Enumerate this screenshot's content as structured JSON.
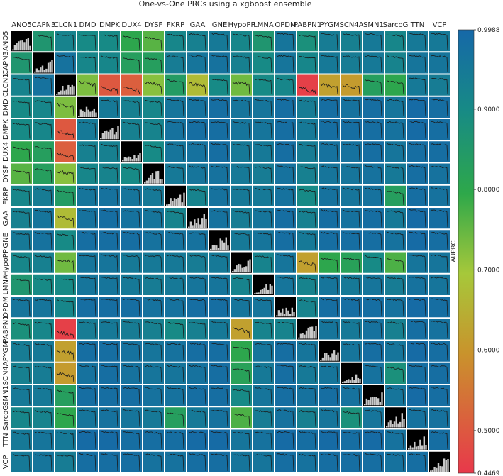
{
  "chart_data": {
    "type": "heatmap",
    "title": "One-vs-One PRCs using a xgboost ensemble",
    "colorbar_label": "AUPRC",
    "colorbar_ticks": [
      "0.9988",
      "0.9000",
      "0.8000",
      "0.7000",
      "0.6000",
      "0.5000",
      "0.4469"
    ],
    "colorbar_tick_values": [
      0.9988,
      0.9,
      0.8,
      0.7,
      0.6,
      0.5,
      0.4469
    ],
    "vmin": 0.4469,
    "vmax": 0.9988,
    "classes": [
      "ANO5",
      "CAPN3",
      "CLCN1",
      "DMD",
      "DMPK",
      "DUX4",
      "DYSF",
      "FKRP",
      "GAA",
      "GNE",
      "HypoPP",
      "LMNA",
      "OPDM",
      "PABPN1",
      "PYGM",
      "SCN4A",
      "SMN1",
      "SarcoG",
      "TTN",
      "VCP"
    ],
    "colors": {
      "low": "#e8384b",
      "mid_low": "#c9932c",
      "mid": "#a6c83a",
      "mid_high": "#2ea84a",
      "high_mid": "#178a86",
      "high": "#1668a8",
      "diagonal": "#000000",
      "histogram": "#c8c8c8"
    },
    "auprc_matrix": [
      [
        null,
        0.86,
        0.92,
        0.9,
        0.9,
        0.8,
        0.76,
        0.91,
        0.93,
        0.95,
        0.91,
        0.86,
        0.96,
        0.88,
        0.94,
        0.93,
        0.95,
        0.91,
        0.95,
        0.95
      ],
      [
        0.86,
        null,
        0.97,
        0.91,
        0.91,
        0.83,
        0.83,
        0.94,
        0.96,
        0.97,
        0.93,
        0.9,
        0.96,
        0.91,
        0.95,
        0.94,
        0.95,
        0.92,
        0.96,
        0.96
      ],
      [
        0.92,
        0.97,
        null,
        0.73,
        0.5,
        0.51,
        0.72,
        0.84,
        0.67,
        0.9,
        0.74,
        0.9,
        0.91,
        0.46,
        0.62,
        0.61,
        0.83,
        0.8,
        0.95,
        0.94
      ],
      [
        0.9,
        0.91,
        0.73,
        null,
        0.95,
        0.93,
        0.91,
        0.96,
        0.97,
        0.98,
        0.96,
        0.96,
        0.98,
        0.94,
        0.98,
        0.97,
        0.98,
        0.96,
        0.99,
        0.98
      ],
      [
        0.9,
        0.91,
        0.5,
        0.95,
        null,
        0.93,
        0.92,
        0.97,
        0.98,
        0.98,
        0.96,
        0.96,
        0.98,
        0.95,
        0.98,
        0.98,
        0.98,
        0.97,
        0.99,
        0.98
      ],
      [
        0.8,
        0.83,
        0.51,
        0.93,
        0.93,
        null,
        0.9,
        0.96,
        0.97,
        0.98,
        0.95,
        0.95,
        0.98,
        0.94,
        0.97,
        0.97,
        0.98,
        0.96,
        0.98,
        0.98
      ],
      [
        0.76,
        0.83,
        0.72,
        0.91,
        0.92,
        0.9,
        null,
        0.95,
        0.96,
        0.97,
        0.95,
        0.94,
        0.97,
        0.93,
        0.96,
        0.96,
        0.97,
        0.95,
        0.98,
        0.97
      ],
      [
        0.91,
        0.94,
        0.84,
        0.96,
        0.97,
        0.96,
        0.95,
        null,
        0.92,
        0.97,
        0.95,
        0.95,
        0.97,
        0.9,
        0.97,
        0.96,
        0.97,
        0.83,
        0.98,
        0.97
      ],
      [
        0.93,
        0.96,
        0.67,
        0.97,
        0.98,
        0.97,
        0.96,
        0.92,
        null,
        0.97,
        0.94,
        0.96,
        0.98,
        0.93,
        0.98,
        0.97,
        0.98,
        0.95,
        0.99,
        0.98
      ],
      [
        0.95,
        0.97,
        0.9,
        0.98,
        0.98,
        0.98,
        0.97,
        0.97,
        0.97,
        null,
        0.95,
        0.96,
        0.98,
        0.95,
        0.98,
        0.98,
        0.98,
        0.97,
        0.99,
        0.98
      ],
      [
        0.91,
        0.93,
        0.74,
        0.96,
        0.96,
        0.95,
        0.95,
        0.95,
        0.94,
        0.95,
        null,
        0.92,
        0.96,
        0.62,
        0.8,
        0.82,
        0.9,
        0.77,
        0.96,
        0.96
      ],
      [
        0.86,
        0.9,
        0.9,
        0.96,
        0.96,
        0.95,
        0.94,
        0.95,
        0.96,
        0.96,
        0.92,
        null,
        0.96,
        0.92,
        0.96,
        0.95,
        0.96,
        0.94,
        0.97,
        0.96
      ],
      [
        0.96,
        0.96,
        0.91,
        0.98,
        0.98,
        0.98,
        0.97,
        0.97,
        0.98,
        0.98,
        0.96,
        0.96,
        null,
        0.92,
        0.98,
        0.98,
        0.98,
        0.97,
        0.99,
        0.98
      ],
      [
        0.88,
        0.91,
        0.46,
        0.94,
        0.95,
        0.94,
        0.93,
        0.9,
        0.93,
        0.95,
        0.62,
        0.92,
        0.92,
        null,
        0.96,
        0.95,
        0.97,
        0.93,
        0.98,
        0.97
      ],
      [
        0.94,
        0.95,
        0.62,
        0.98,
        0.98,
        0.97,
        0.96,
        0.97,
        0.98,
        0.98,
        0.8,
        0.96,
        0.98,
        0.96,
        null,
        0.96,
        0.98,
        0.96,
        0.99,
        0.98
      ],
      [
        0.93,
        0.94,
        0.61,
        0.97,
        0.98,
        0.97,
        0.96,
        0.96,
        0.97,
        0.98,
        0.82,
        0.95,
        0.98,
        0.95,
        0.96,
        null,
        0.97,
        0.88,
        0.98,
        0.98
      ],
      [
        0.95,
        0.95,
        0.83,
        0.98,
        0.98,
        0.98,
        0.97,
        0.97,
        0.98,
        0.98,
        0.9,
        0.96,
        0.98,
        0.97,
        0.98,
        0.97,
        null,
        0.96,
        0.99,
        0.98
      ],
      [
        0.91,
        0.92,
        0.8,
        0.96,
        0.97,
        0.96,
        0.95,
        0.83,
        0.95,
        0.97,
        0.77,
        0.94,
        0.97,
        0.93,
        0.96,
        0.88,
        0.96,
        null,
        0.97,
        0.97
      ],
      [
        0.95,
        0.96,
        0.95,
        0.99,
        0.99,
        0.98,
        0.98,
        0.98,
        0.99,
        0.99,
        0.96,
        0.97,
        0.99,
        0.98,
        0.99,
        0.98,
        0.99,
        0.97,
        null,
        0.98
      ],
      [
        0.95,
        0.96,
        0.94,
        0.98,
        0.98,
        0.98,
        0.97,
        0.97,
        0.98,
        0.98,
        0.96,
        0.96,
        0.98,
        0.97,
        0.98,
        0.98,
        0.98,
        0.97,
        0.98,
        null
      ]
    ]
  }
}
